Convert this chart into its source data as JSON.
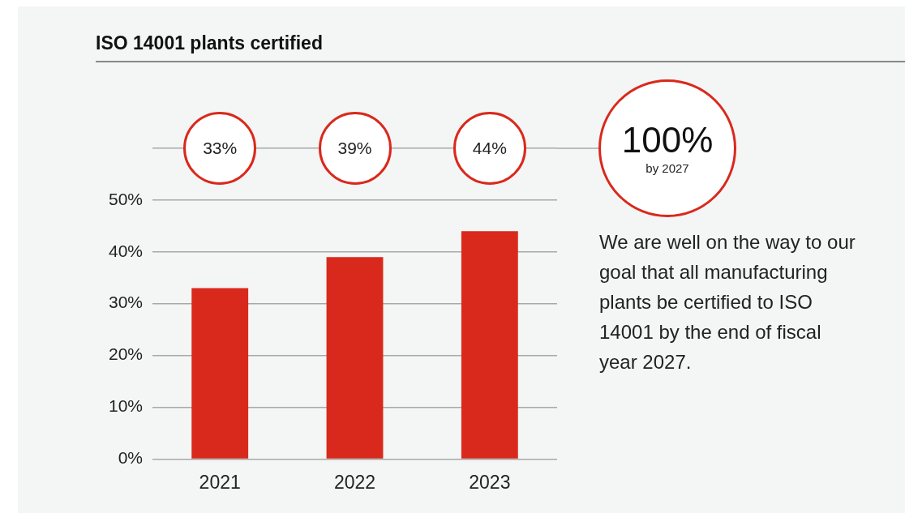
{
  "chart_data": {
    "type": "bar",
    "title": "ISO 14001 plants certified",
    "categories": [
      "2021",
      "2022",
      "2023"
    ],
    "values": [
      33,
      39,
      44
    ],
    "color": "#d9291c",
    "ylim": [
      0,
      60
    ],
    "yticks": [
      {
        "value": 0,
        "label": "0%"
      },
      {
        "value": 10,
        "label": "10%"
      },
      {
        "value": 20,
        "label": "20%"
      },
      {
        "value": 30,
        "label": "30%"
      },
      {
        "value": 40,
        "label": "40%"
      },
      {
        "value": 50,
        "label": "50%"
      },
      {
        "value": 60,
        "label": null
      }
    ],
    "grid": "y",
    "legend": false,
    "annotations": [
      "33%",
      "39%",
      "44%",
      "100%",
      "by 2027",
      "We are well on the way to our goal that all manufacturing plants be certified to ISO 14001 by the end of fiscal year 2027."
    ]
  }
}
